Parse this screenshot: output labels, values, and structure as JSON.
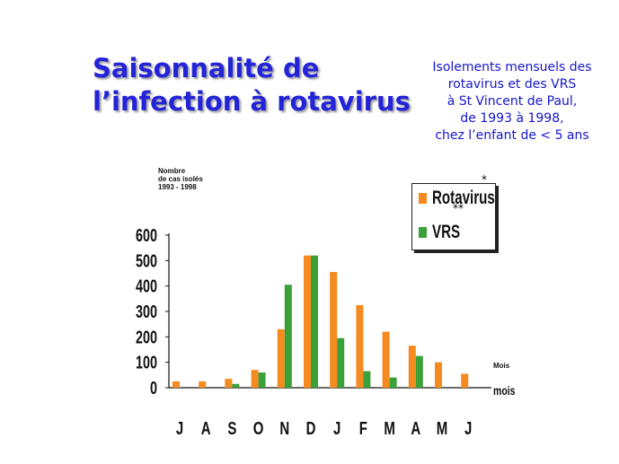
{
  "title": {
    "line1": "Saisonnalité de",
    "line2": "l’infection à rotavirus"
  },
  "subtitle": {
    "line1": "Isolements mensuels des",
    "line2": "rotavirus et des VRS",
    "line3": "à St Vincent de Paul,",
    "line4": "de 1993 à 1998,",
    "line5": "chez l’enfant de < 5 ans"
  },
  "y_axis_title": {
    "line1": "Nombre",
    "line2": "de cas isolés",
    "line3": "1993 - 1998"
  },
  "x_unit_small": "Mois",
  "x_unit_big": "mois",
  "asterisk1": "*",
  "asterisk2": "**",
  "colors": {
    "rotavirus": "#f58a1f",
    "vrs": "#3aa03a",
    "title": "#2323d8",
    "subtitle": "#1515cc"
  },
  "chart_data": {
    "type": "bar",
    "categories": [
      "J",
      "A",
      "S",
      "O",
      "N",
      "D",
      "J",
      "F",
      "M",
      "A",
      "M",
      "J"
    ],
    "series": [
      {
        "name": "Rotavirus",
        "values": [
          25,
          25,
          35,
          70,
          230,
          520,
          455,
          325,
          220,
          165,
          100,
          55
        ]
      },
      {
        "name": "VRS",
        "values": [
          0,
          0,
          15,
          60,
          405,
          520,
          195,
          65,
          40,
          125,
          0,
          0
        ]
      }
    ],
    "yticks": [
      0,
      100,
      200,
      300,
      400,
      500,
      600
    ],
    "ylim": [
      0,
      600
    ],
    "legend": "top-right",
    "grid": false
  }
}
